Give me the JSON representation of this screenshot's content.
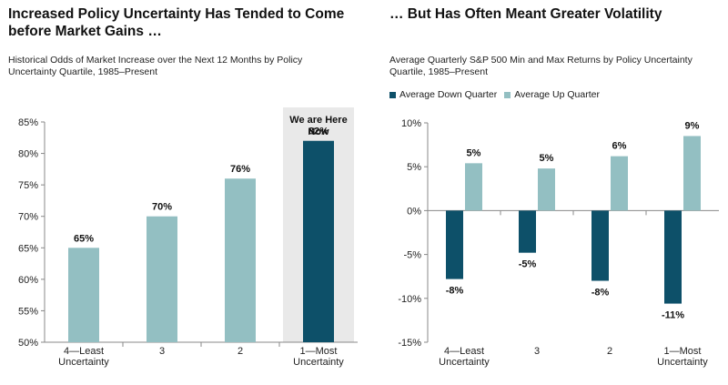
{
  "charts": {
    "left": {
      "title": "Increased Policy Uncertainty Has Tended to Come before Market Gains …",
      "subtitle": "Historical Odds of Market Increase over the Next 12 Months by Policy Uncertainty Quartile, 1985–Present",
      "annotation": [
        "We are Here",
        "Now"
      ]
    },
    "right": {
      "title": "… But Has Often Meant Greater Volatility",
      "subtitle": "Average Quarterly S&P 500 Min and Max Returns by Policy Uncertainty Quartile, 1985–Present"
    }
  },
  "colors": {
    "light": "#93bfc2",
    "dark": "#0d5069",
    "highlight": "#e9e9e9",
    "axis": "#888888"
  },
  "chart_data": [
    {
      "type": "bar",
      "title": "Increased Policy Uncertainty Has Tended to Come before Market Gains …",
      "subtitle": "Historical Odds of Market Increase over the Next 12 Months by Policy Uncertainty Quartile, 1985–Present",
      "categories": [
        [
          "4—Least",
          "Uncertainty"
        ],
        [
          "3"
        ],
        [
          "2"
        ],
        [
          "1—Most",
          "Uncertainty"
        ]
      ],
      "values": [
        65,
        70,
        76,
        82
      ],
      "data_labels": [
        "65%",
        "70%",
        "76%",
        "82%"
      ],
      "ylim": [
        50,
        85
      ],
      "yticks": [
        50,
        55,
        60,
        65,
        70,
        75,
        80,
        85
      ],
      "ytick_labels": [
        "50%",
        "55%",
        "60%",
        "65%",
        "70%",
        "75%",
        "80%",
        "85%"
      ],
      "highlight_index": 3,
      "grid": false
    },
    {
      "type": "bar",
      "title": "… But Has Often Meant Greater Volatility",
      "subtitle": "Average Quarterly S&P 500 Min and Max Returns by Policy Uncertainty Quartile, 1985–Present",
      "categories": [
        [
          "4—Least",
          "Uncertainty"
        ],
        [
          "3"
        ],
        [
          "2"
        ],
        [
          "1—Most",
          "Uncertainty"
        ]
      ],
      "series": [
        {
          "name": "Average Down Quarter",
          "values": [
            -7.8,
            -4.8,
            -8.0,
            -10.6
          ],
          "data_labels": [
            "-8%",
            "-5%",
            "-8%",
            "-11%"
          ]
        },
        {
          "name": "Average Up Quarter",
          "values": [
            5.4,
            4.8,
            6.2,
            8.5
          ],
          "data_labels": [
            "5%",
            "5%",
            "6%",
            "9%"
          ]
        }
      ],
      "ylim": [
        -15,
        10
      ],
      "yticks": [
        -15,
        -10,
        -5,
        0,
        5,
        10
      ],
      "ytick_labels": [
        "-15%",
        "-10%",
        "-5%",
        "0%",
        "5%",
        "10%"
      ],
      "legend": "top-left",
      "grid": false
    }
  ]
}
